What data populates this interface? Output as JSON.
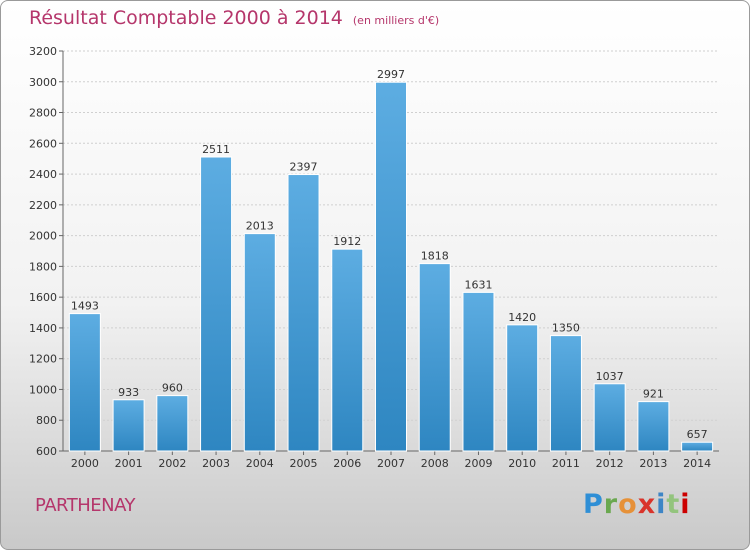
{
  "header": {
    "title": "Résultat Comptable 2000 à 2014",
    "subtitle": "(en milliers d'€)"
  },
  "footer": {
    "city": "PARTHENAY",
    "logo_text": "Proxiti"
  },
  "colors": {
    "title": "#b5366b",
    "bar_top": "#5dade2",
    "bar_bottom": "#2e86c1"
  },
  "chart_data": {
    "type": "bar",
    "title": "Résultat Comptable 2000 à 2014",
    "subtitle": "(en milliers d'€)",
    "xlabel": "",
    "ylabel": "",
    "categories": [
      "2000",
      "2001",
      "2002",
      "2003",
      "2004",
      "2005",
      "2006",
      "2007",
      "2008",
      "2009",
      "2010",
      "2011",
      "2012",
      "2013",
      "2014"
    ],
    "values": [
      1493,
      933,
      960,
      2511,
      2013,
      2397,
      1912,
      2997,
      1818,
      1631,
      1420,
      1350,
      1037,
      921,
      657
    ],
    "ylim": [
      600,
      3200
    ],
    "yticks": [
      600,
      800,
      1000,
      1200,
      1400,
      1600,
      1800,
      2000,
      2200,
      2400,
      2600,
      2800,
      3000,
      3200
    ],
    "grid": true
  }
}
